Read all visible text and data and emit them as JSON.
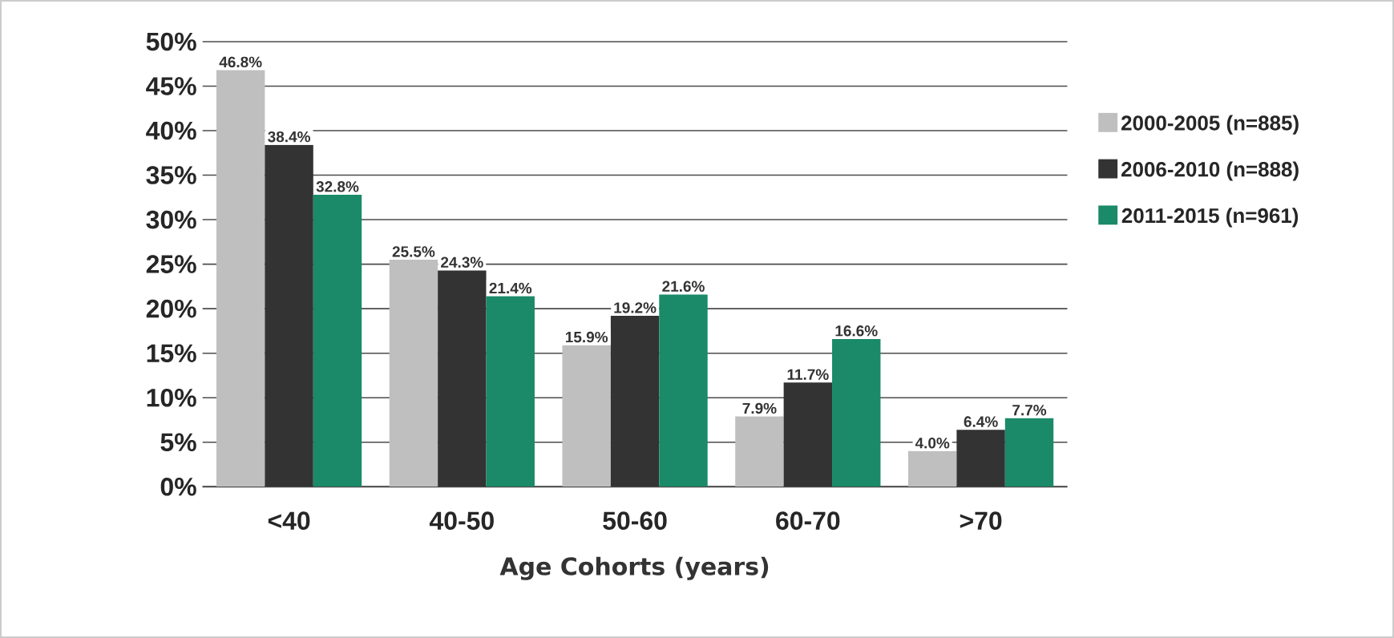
{
  "chart_data": {
    "type": "bar",
    "xlabel": "Age Cohorts (years)",
    "categories": [
      "<40",
      "40-50",
      "50-60",
      "60-70",
      ">70"
    ],
    "series": [
      {
        "name": "2000-2005 (n=885)",
        "color": "#bfbfbf",
        "values": [
          46.8,
          25.5,
          15.9,
          7.9,
          4.0
        ],
        "value_labels": [
          "46.8%",
          "25.5%",
          "15.9%",
          "7.9%",
          "4.0%"
        ]
      },
      {
        "name": "2006-2010 (n=888)",
        "color": "#333333",
        "values": [
          38.4,
          24.3,
          19.2,
          11.7,
          6.4
        ],
        "value_labels": [
          "38.4%",
          "24.3%",
          "19.2%",
          "11.7%",
          "6.4%"
        ]
      },
      {
        "name": "2011-2015 (n=961)",
        "color": "#1a8a68",
        "values": [
          32.8,
          21.4,
          21.6,
          16.6,
          7.7
        ],
        "value_labels": [
          "32.8%",
          "21.4%",
          "21.6%",
          "16.6%",
          "7.7%"
        ]
      }
    ],
    "ylim": [
      0,
      50
    ],
    "yticks": [
      {
        "value": 0,
        "label": "0%"
      },
      {
        "value": 5,
        "label": "5%"
      },
      {
        "value": 10,
        "label": "10%"
      },
      {
        "value": 15,
        "label": "15%"
      },
      {
        "value": 20,
        "label": "20%"
      },
      {
        "value": 25,
        "label": "25%"
      },
      {
        "value": 30,
        "label": "30%"
      },
      {
        "value": 35,
        "label": "35%"
      },
      {
        "value": 40,
        "label": "40%"
      },
      {
        "value": 45,
        "label": "45%"
      },
      {
        "value": 50,
        "label": "50%"
      }
    ],
    "grid": "y",
    "legend": "right"
  }
}
